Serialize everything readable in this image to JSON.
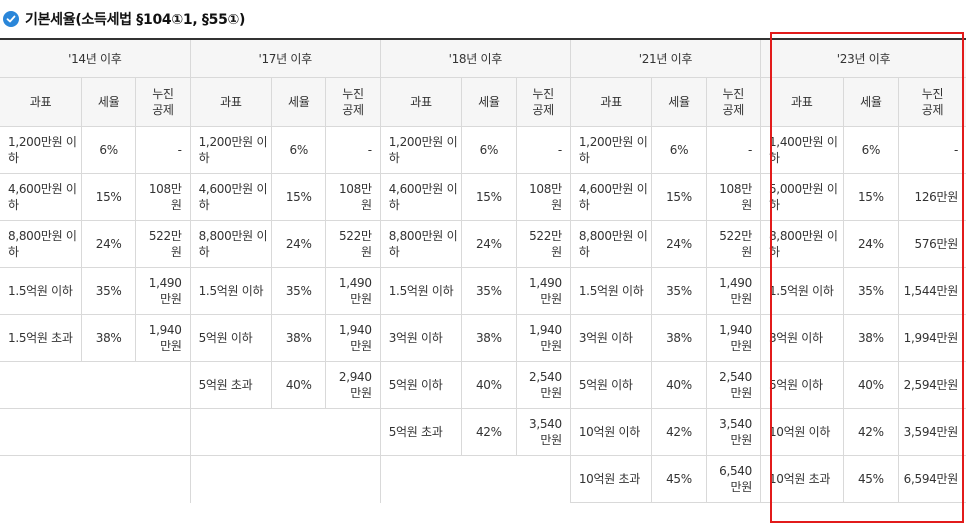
{
  "title": "기본세율(소득세법 §104①1, §55①)",
  "icon": "check-circle-icon",
  "accent_color": "#2a86d9",
  "highlight_color": "#e21b1b",
  "headers": {
    "base": "과표",
    "rate": "세율",
    "deduction": "누진\n공제"
  },
  "periods": [
    {
      "label": "'14년 이후",
      "rows": [
        {
          "base": "1,200만원 이하",
          "rate": "6%",
          "deduction": "-"
        },
        {
          "base": "4,600만원 이하",
          "rate": "15%",
          "deduction": "108만원"
        },
        {
          "base": "8,800만원 이하",
          "rate": "24%",
          "deduction": "522만원"
        },
        {
          "base": "1.5억원 이하",
          "rate": "35%",
          "deduction": "1,490만원"
        },
        {
          "base": "1.5억원 초과",
          "rate": "38%",
          "deduction": "1,940만원"
        }
      ]
    },
    {
      "label": "'17년 이후",
      "rows": [
        {
          "base": "1,200만원 이하",
          "rate": "6%",
          "deduction": "-"
        },
        {
          "base": "4,600만원 이하",
          "rate": "15%",
          "deduction": "108만원"
        },
        {
          "base": "8,800만원 이하",
          "rate": "24%",
          "deduction": "522만원"
        },
        {
          "base": "1.5억원 이하",
          "rate": "35%",
          "deduction": "1,490만원"
        },
        {
          "base": "5억원 이하",
          "rate": "38%",
          "deduction": "1,940만원"
        },
        {
          "base": "5억원 초과",
          "rate": "40%",
          "deduction": "2,940만원"
        }
      ]
    },
    {
      "label": "'18년 이후",
      "rows": [
        {
          "base": "1,200만원 이하",
          "rate": "6%",
          "deduction": "-"
        },
        {
          "base": "4,600만원 이하",
          "rate": "15%",
          "deduction": "108만원"
        },
        {
          "base": "8,800만원 이하",
          "rate": "24%",
          "deduction": "522만원"
        },
        {
          "base": "1.5억원 이하",
          "rate": "35%",
          "deduction": "1,490만원"
        },
        {
          "base": "3억원 이하",
          "rate": "38%",
          "deduction": "1,940만원"
        },
        {
          "base": "5억원 이하",
          "rate": "40%",
          "deduction": "2,540만원"
        },
        {
          "base": "5억원 초과",
          "rate": "42%",
          "deduction": "3,540만원"
        }
      ]
    },
    {
      "label": "'21년 이후",
      "rows": [
        {
          "base": "1,200만원 이하",
          "rate": "6%",
          "deduction": "-"
        },
        {
          "base": "4,600만원 이하",
          "rate": "15%",
          "deduction": "108만원"
        },
        {
          "base": "8,800만원 이하",
          "rate": "24%",
          "deduction": "522만원"
        },
        {
          "base": "1.5억원 이하",
          "rate": "35%",
          "deduction": "1,490만원"
        },
        {
          "base": "3억원 이하",
          "rate": "38%",
          "deduction": "1,940만원"
        },
        {
          "base": "5억원 이하",
          "rate": "40%",
          "deduction": "2,540만원"
        },
        {
          "base": "10억원 이하",
          "rate": "42%",
          "deduction": "3,540만원"
        },
        {
          "base": "10억원 초과",
          "rate": "45%",
          "deduction": "6,540만원"
        }
      ]
    },
    {
      "label": "'23년 이후",
      "rows": [
        {
          "base": "1,400만원 이하",
          "rate": "6%",
          "deduction": "-"
        },
        {
          "base": "5,000만원 이하",
          "rate": "15%",
          "deduction": "126만원"
        },
        {
          "base": "8,800만원 이하",
          "rate": "24%",
          "deduction": "576만원"
        },
        {
          "base": "1.5억원 이하",
          "rate": "35%",
          "deduction": "1,544만원"
        },
        {
          "base": "3억원 이하",
          "rate": "38%",
          "deduction": "1,994만원"
        },
        {
          "base": "5억원 이하",
          "rate": "40%",
          "deduction": "2,594만원"
        },
        {
          "base": "10억원 이하",
          "rate": "42%",
          "deduction": "3,594만원"
        },
        {
          "base": "10억원 초과",
          "rate": "45%",
          "deduction": "6,594만원"
        }
      ]
    }
  ]
}
